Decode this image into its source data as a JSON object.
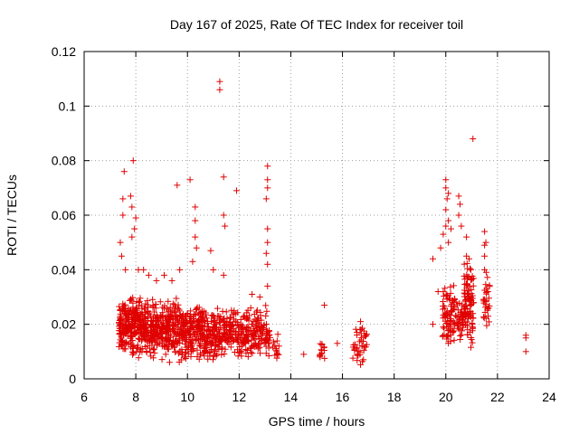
{
  "chart_data": {
    "type": "scatter",
    "title": "Day 167 of 2025, Rate Of TEC Index for receiver toil",
    "xlabel": "GPS time / hours",
    "ylabel": "ROTI / TECUs",
    "xlim": [
      6,
      24
    ],
    "ylim": [
      0,
      0.12
    ],
    "xticks": [
      6,
      8,
      10,
      12,
      14,
      16,
      18,
      20,
      22,
      24
    ],
    "yticks": [
      0,
      0.02,
      0.04,
      0.06,
      0.08,
      0.1,
      0.12
    ],
    "xtick_labels": [
      "6",
      "8",
      "10",
      "12",
      "14",
      "16",
      "18",
      "20",
      "22",
      "24"
    ],
    "ytick_labels": [
      "0",
      "0.02",
      "0.04",
      "0.06",
      "0.08",
      "0.1",
      "0.12"
    ],
    "grid": true,
    "marker": "+",
    "series_color": "#e00000",
    "clusters": [
      {
        "x": [
          7.35,
          7.6
        ],
        "y": [
          0.008,
          0.03
        ],
        "count": 70
      },
      {
        "x": [
          7.6,
          8.2
        ],
        "y": [
          0.007,
          0.03
        ],
        "count": 160
      },
      {
        "x": [
          8.2,
          9.0
        ],
        "y": [
          0.006,
          0.03
        ],
        "count": 170
      },
      {
        "x": [
          9.0,
          9.8
        ],
        "y": [
          0.005,
          0.03
        ],
        "count": 170
      },
      {
        "x": [
          9.8,
          10.6
        ],
        "y": [
          0.006,
          0.028
        ],
        "count": 170
      },
      {
        "x": [
          10.6,
          11.4
        ],
        "y": [
          0.006,
          0.026
        ],
        "count": 140
      },
      {
        "x": [
          11.4,
          12.3
        ],
        "y": [
          0.007,
          0.026
        ],
        "count": 130
      },
      {
        "x": [
          12.3,
          13.2
        ],
        "y": [
          0.007,
          0.028
        ],
        "count": 120
      },
      {
        "x": [
          13.3,
          13.55
        ],
        "y": [
          0.006,
          0.018
        ],
        "count": 14
      },
      {
        "x": [
          15.1,
          15.35
        ],
        "y": [
          0.006,
          0.015
        ],
        "count": 14
      },
      {
        "x": [
          16.4,
          16.95
        ],
        "y": [
          0.005,
          0.02
        ],
        "count": 40
      },
      {
        "x": [
          19.85,
          20.35
        ],
        "y": [
          0.01,
          0.035
        ],
        "count": 80
      },
      {
        "x": [
          20.35,
          20.7
        ],
        "y": [
          0.012,
          0.03
        ],
        "count": 40
      },
      {
        "x": [
          20.7,
          21.1
        ],
        "y": [
          0.01,
          0.045
        ],
        "count": 100
      },
      {
        "x": [
          21.45,
          21.7
        ],
        "y": [
          0.013,
          0.04
        ],
        "count": 30
      }
    ],
    "points": [
      [
        7.4,
        0.05
      ],
      [
        7.45,
        0.045
      ],
      [
        7.5,
        0.06
      ],
      [
        7.5,
        0.066
      ],
      [
        7.55,
        0.076
      ],
      [
        7.6,
        0.04
      ],
      [
        7.8,
        0.067
      ],
      [
        7.85,
        0.063
      ],
      [
        7.9,
        0.08
      ],
      [
        7.85,
        0.052
      ],
      [
        7.95,
        0.055
      ],
      [
        8.0,
        0.059
      ],
      [
        8.1,
        0.04
      ],
      [
        8.3,
        0.04
      ],
      [
        8.5,
        0.038
      ],
      [
        8.8,
        0.036
      ],
      [
        9.1,
        0.038
      ],
      [
        9.4,
        0.036
      ],
      [
        9.6,
        0.071
      ],
      [
        9.7,
        0.04
      ],
      [
        10.1,
        0.073
      ],
      [
        10.2,
        0.043
      ],
      [
        10.3,
        0.063
      ],
      [
        10.3,
        0.058
      ],
      [
        10.3,
        0.052
      ],
      [
        10.35,
        0.048
      ],
      [
        10.9,
        0.047
      ],
      [
        11.0,
        0.04
      ],
      [
        11.25,
        0.109
      ],
      [
        11.25,
        0.106
      ],
      [
        11.4,
        0.074
      ],
      [
        11.4,
        0.06
      ],
      [
        11.45,
        0.056
      ],
      [
        11.4,
        0.038
      ],
      [
        11.9,
        0.069
      ],
      [
        12.5,
        0.031
      ],
      [
        12.8,
        0.03
      ],
      [
        13.1,
        0.078
      ],
      [
        13.1,
        0.073
      ],
      [
        13.1,
        0.07
      ],
      [
        13.05,
        0.066
      ],
      [
        13.1,
        0.055
      ],
      [
        13.1,
        0.05
      ],
      [
        13.05,
        0.046
      ],
      [
        13.1,
        0.042
      ],
      [
        13.1,
        0.034
      ],
      [
        14.5,
        0.009
      ],
      [
        15.3,
        0.027
      ],
      [
        15.8,
        0.013
      ],
      [
        16.7,
        0.021
      ],
      [
        19.5,
        0.044
      ],
      [
        19.5,
        0.02
      ],
      [
        19.7,
        0.032
      ],
      [
        19.8,
        0.048
      ],
      [
        19.9,
        0.053
      ],
      [
        20.0,
        0.07
      ],
      [
        20.0,
        0.073
      ],
      [
        20.1,
        0.068
      ],
      [
        20.05,
        0.066
      ],
      [
        20.0,
        0.062
      ],
      [
        20.1,
        0.058
      ],
      [
        20.0,
        0.056
      ],
      [
        20.1,
        0.05
      ],
      [
        20.2,
        0.055
      ],
      [
        20.5,
        0.067
      ],
      [
        20.55,
        0.064
      ],
      [
        20.5,
        0.06
      ],
      [
        20.6,
        0.056
      ],
      [
        20.8,
        0.052
      ],
      [
        20.8,
        0.045
      ],
      [
        20.9,
        0.044
      ],
      [
        21.05,
        0.088
      ],
      [
        21.5,
        0.054
      ],
      [
        21.55,
        0.05
      ],
      [
        21.5,
        0.049
      ],
      [
        21.5,
        0.045
      ],
      [
        21.5,
        0.04
      ],
      [
        23.1,
        0.016
      ],
      [
        23.1,
        0.015
      ],
      [
        23.1,
        0.01
      ]
    ]
  }
}
